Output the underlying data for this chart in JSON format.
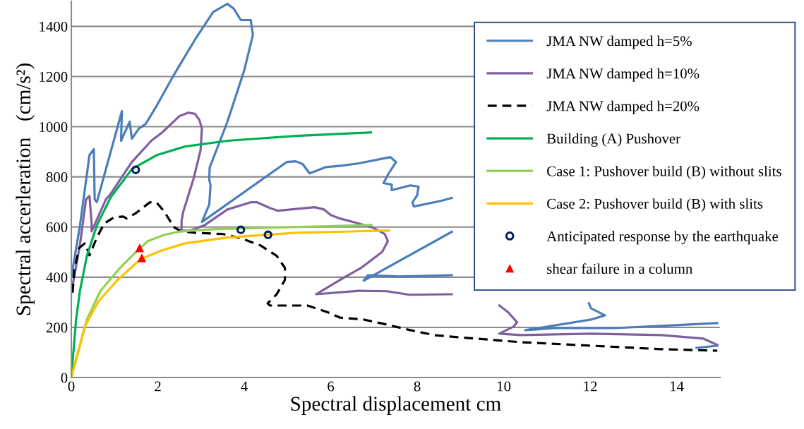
{
  "chart_data": {
    "type": "line",
    "xlabel": "Spectral displacement cm",
    "ylabel": "Spectral accerleration　(cm/s²)",
    "xlim": [
      0,
      15
    ],
    "ylim": [
      0,
      1500
    ],
    "xticks": [
      0,
      2,
      4,
      6,
      8,
      10,
      12,
      14
    ],
    "yticks": [
      0,
      200,
      400,
      600,
      800,
      1000,
      1200,
      1400
    ],
    "grid": "y",
    "legend": "top right",
    "series": [
      {
        "name": "JMA NW damped h=5%",
        "color": "#4a7ebb",
        "line_style": "solid",
        "marker": "none",
        "x": [
          0,
          0.2,
          0.42,
          0.52,
          0.54,
          0.59,
          1.17,
          1.15,
          1.35,
          1.4,
          1.56,
          1.72,
          1.98,
          2.37,
          2.86,
          3.28,
          3.61,
          3.76,
          3.92,
          4.15,
          4.2,
          4.0,
          3.61,
          3.2,
          3.19,
          3.22,
          3.19,
          3.02,
          4.98,
          5.19,
          5.35,
          5.51,
          5.89,
          6.28,
          6.65,
          7.38,
          7.51,
          7.33,
          7.22,
          7.41,
          7.41,
          7.84,
          8.03,
          8.0,
          7.89,
          7.92,
          8.55,
          8.8,
          null,
          8.8,
          6.76,
          6.86,
          7.58,
          8.8,
          null,
          11.97,
          12.02,
          12.34,
          12.02,
          10.5,
          11.2,
          12.55,
          13.64,
          14.94,
          null,
          14.46,
          14.94
        ],
        "values": [
          400,
          606,
          887,
          910,
          710,
          699,
          1062,
          944,
          1020,
          952,
          992,
          1011,
          1085,
          1206,
          1347,
          1457,
          1490,
          1470,
          1425,
          1425,
          1366,
          1225,
          1020,
          837,
          789,
          766,
          690,
          620,
          859,
          862,
          851,
          814,
          839,
          845,
          854,
          879,
          859,
          811,
          775,
          769,
          747,
          766,
          761,
          727,
          699,
          682,
          704,
          716,
          null,
          581,
          386,
          408,
          403,
          408,
          null,
          296,
          276,
          248,
          231,
          189,
          197,
          197,
          206,
          217,
          null,
          118,
          127
        ]
      },
      {
        "name": "JMA NW damped h=10%",
        "color": "#7f5f9f",
        "line_style": "solid",
        "marker": "none",
        "x": [
          0.03,
          0.2,
          0.34,
          0.42,
          0.47,
          0.47,
          0.8,
          0.91,
          1.4,
          1.85,
          2.1,
          2.5,
          2.7,
          2.86,
          2.96,
          3.02,
          2.99,
          2.83,
          2.59,
          2.55,
          2.55,
          2.75,
          3.07,
          3.61,
          4.16,
          4.29,
          4.59,
          4.78,
          5.63,
          5.84,
          6.0,
          6.21,
          6.65,
          6.98,
          7.25,
          7.32,
          7.19,
          6.7,
          6.21,
          5.66,
          6.65,
          7.3,
          7.82,
          8.8,
          null,
          9.9,
          10.11,
          10.31,
          10.23,
          9.9,
          10.39,
          12.02,
          13.64,
          14.62,
          14.94
        ],
        "values": [
          366,
          530,
          710,
          724,
          614,
          583,
          710,
          732,
          859,
          944,
          977,
          1042,
          1056,
          1051,
          1028,
          992,
          907,
          794,
          662,
          625,
          586,
          586,
          606,
          670,
          699,
          699,
          676,
          665,
          679,
          670,
          648,
          634,
          614,
          597,
          572,
          544,
          501,
          437,
          389,
          332,
          346,
          344,
          330,
          332,
          null,
          287,
          259,
          220,
          203,
          175,
          169,
          175,
          169,
          155,
          130
        ]
      },
      {
        "name": "JMA NW damped h=20%",
        "color": "#000000",
        "line_style": "dashed",
        "marker": "none",
        "x": [
          0.03,
          0.07,
          0.18,
          0.31,
          0.36,
          0.42,
          0.59,
          0.76,
          0.99,
          1.2,
          1.28,
          1.5,
          1.82,
          1.98,
          2.15,
          2.37,
          2.54,
          2.86,
          3.51,
          3.93,
          4.37,
          4.75,
          4.94,
          4.94,
          4.75,
          4.54,
          4.59,
          5.19,
          5.46,
          5.95,
          6.21,
          6.76,
          7.3,
          7.84,
          8.39,
          8.93,
          10.39,
          12.02,
          13.64,
          14.94
        ],
        "values": [
          338,
          428,
          516,
          535,
          516,
          487,
          558,
          614,
          639,
          642,
          634,
          656,
          699,
          696,
          662,
          600,
          583,
          577,
          572,
          555,
          527,
          485,
          437,
          389,
          332,
          296,
          287,
          287,
          287,
          259,
          239,
          231,
          211,
          189,
          169,
          161,
          141,
          127,
          113,
          107
        ]
      },
      {
        "name": "Building (A) Pushover",
        "color": "#00b050",
        "line_style": "solid",
        "marker": "none",
        "x": [
          0,
          0.11,
          0.2,
          0.36,
          0.59,
          0.91,
          1.4,
          1.98,
          2.63,
          3.61,
          5.19,
          6.93
        ],
        "values": [
          0,
          231,
          346,
          485,
          606,
          718,
          831,
          887,
          921,
          944,
          963,
          977
        ]
      },
      {
        "name": "Case 1: Pushover build (B) without slits",
        "color": "#92d050",
        "line_style": "solid",
        "marker": "none",
        "x": [
          0,
          0.36,
          0.67,
          0.91,
          1.17,
          1.5,
          1.77,
          2.15,
          2.54,
          3.35,
          5.19,
          6.94
        ],
        "values": [
          0,
          231,
          344,
          394,
          445,
          501,
          544,
          569,
          583,
          592,
          600,
          608
        ]
      },
      {
        "name": "Case 2: Pushover build (B) with slits",
        "color": "#ffc000",
        "line_style": "solid",
        "marker": "none",
        "x": [
          0,
          0.31,
          0.63,
          1.07,
          1.61,
          2.1,
          2.63,
          3.61,
          5.19,
          7.35
        ],
        "values": [
          0,
          203,
          304,
          389,
          473,
          507,
          535,
          558,
          577,
          586
        ]
      },
      {
        "type": "scatter",
        "name": "Anticipated response by the earthquake",
        "color": "#002060",
        "marker": "circle",
        "x": [
          1.49,
          3.92,
          4.55
        ],
        "values": [
          828,
          589,
          569
        ]
      },
      {
        "type": "scatter",
        "name": "shear failure in a column",
        "color": "#ff0000",
        "marker": "triangle",
        "x": [
          1.58,
          1.63
        ],
        "values": [
          516,
          476
        ]
      }
    ]
  }
}
